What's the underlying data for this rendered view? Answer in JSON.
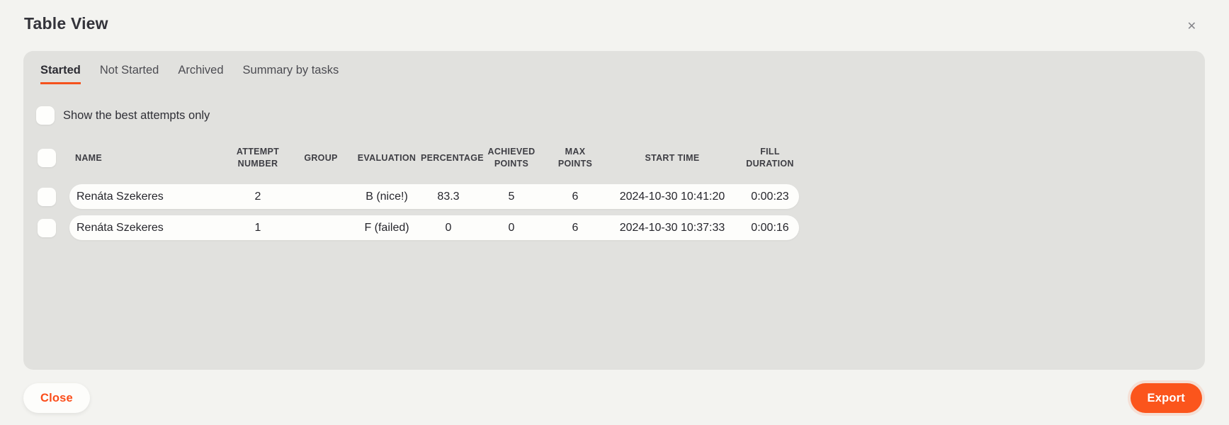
{
  "modal": {
    "title": "Table View",
    "close_glyph": "✕"
  },
  "tabs": [
    {
      "label": "Started",
      "active": true
    },
    {
      "label": "Not Started",
      "active": false
    },
    {
      "label": "Archived",
      "active": false
    },
    {
      "label": "Summary by tasks",
      "active": false
    }
  ],
  "filter": {
    "label": "Show the best attempts only",
    "checked": false
  },
  "table": {
    "columns": [
      "NAME",
      "ATTEMPT NUMBER",
      "GROUP",
      "EVALUATION",
      "PERCENTAGE",
      "ACHIEVED POINTS",
      "MAX POINTS",
      "START TIME",
      "FILL DURATION"
    ],
    "rows": [
      {
        "name": "Renáta Szekeres",
        "attempt_number": "2",
        "group": "",
        "evaluation": "B (nice!)",
        "percentage": "83.3",
        "achieved_points": "5",
        "max_points": "6",
        "start_time": "2024-10-30 10:41:20",
        "fill_duration": "0:00:23",
        "checked": false
      },
      {
        "name": "Renáta Szekeres",
        "attempt_number": "1",
        "group": "",
        "evaluation": "F (failed)",
        "percentage": "0",
        "achieved_points": "0",
        "max_points": "6",
        "start_time": "2024-10-30 10:37:33",
        "fill_duration": "0:00:16",
        "checked": false
      }
    ]
  },
  "footer": {
    "close_label": "Close",
    "export_label": "Export"
  },
  "colors": {
    "accent": "#fb551c",
    "panel": "#e1e1de",
    "page_background": "#f3f3f0",
    "row_background": "#fdfdfb"
  }
}
